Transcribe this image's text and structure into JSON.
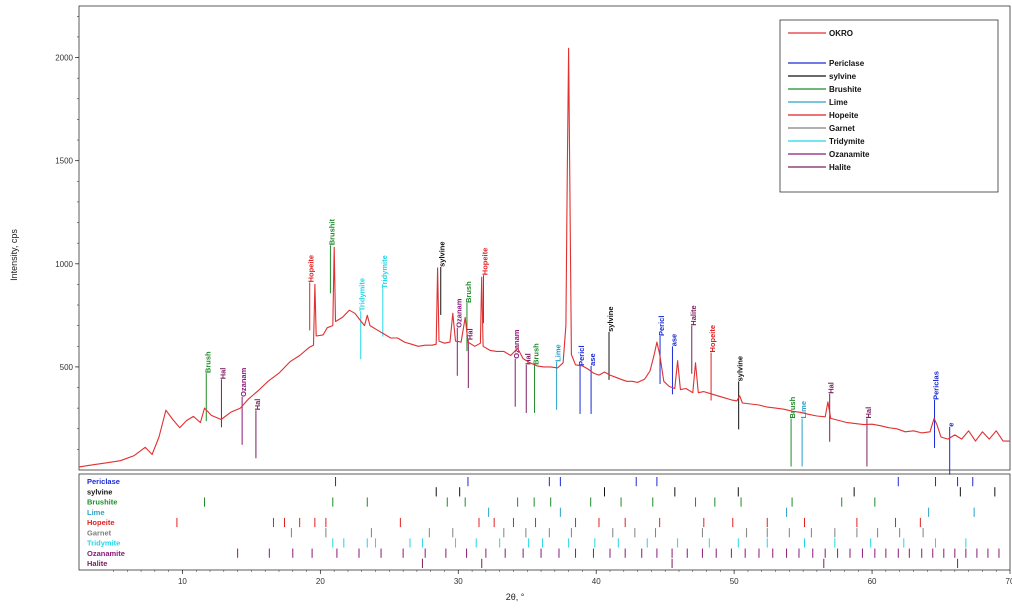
{
  "chart_data": {
    "type": "line",
    "title": "",
    "xlabel": "2θ, °",
    "ylabel": "Intensity, cps",
    "xlim": [
      2.5,
      70
    ],
    "ylim": [
      0,
      2250
    ],
    "x_ticks": [
      10,
      20,
      30,
      40,
      50,
      60,
      70
    ],
    "y_ticks": [
      500,
      1000,
      1500,
      2000
    ],
    "grid": false,
    "legend_position": "top-right",
    "series": [
      {
        "name": "OKRO",
        "color": "#e03030",
        "points": [
          [
            2.5,
            15
          ],
          [
            3.5,
            25
          ],
          [
            4.5,
            35
          ],
          [
            5.5,
            45
          ],
          [
            6.5,
            70
          ],
          [
            7.3,
            110
          ],
          [
            7.8,
            75
          ],
          [
            8.3,
            160
          ],
          [
            8.8,
            290
          ],
          [
            9.3,
            245
          ],
          [
            9.8,
            205
          ],
          [
            10.3,
            240
          ],
          [
            10.8,
            260
          ],
          [
            11.3,
            230
          ],
          [
            11.6,
            300
          ],
          [
            12.1,
            265
          ],
          [
            12.8,
            245
          ],
          [
            13.5,
            280
          ],
          [
            14.2,
            300
          ],
          [
            14.8,
            345
          ],
          [
            15.5,
            385
          ],
          [
            16.2,
            430
          ],
          [
            17,
            470
          ],
          [
            17.8,
            525
          ],
          [
            18.5,
            555
          ],
          [
            19.2,
            595
          ],
          [
            19.5,
            605
          ],
          [
            19.6,
            900
          ],
          [
            19.7,
            650
          ],
          [
            20.2,
            655
          ],
          [
            20.5,
            690
          ],
          [
            20.9,
            700
          ],
          [
            21,
            1080
          ],
          [
            21.1,
            720
          ],
          [
            21.6,
            740
          ],
          [
            22.1,
            775
          ],
          [
            22.5,
            760
          ],
          [
            22.9,
            725
          ],
          [
            23.2,
            700
          ],
          [
            23.4,
            750
          ],
          [
            23.6,
            700
          ],
          [
            24.1,
            680
          ],
          [
            24.6,
            660
          ],
          [
            25.1,
            640
          ],
          [
            25.6,
            640
          ],
          [
            26.1,
            620
          ],
          [
            26.6,
            610
          ],
          [
            27.1,
            600
          ],
          [
            27.6,
            605
          ],
          [
            28.1,
            605
          ],
          [
            28.4,
            610
          ],
          [
            28.5,
            980
          ],
          [
            28.6,
            625
          ],
          [
            29,
            615
          ],
          [
            29.4,
            620
          ],
          [
            29.6,
            760
          ],
          [
            29.8,
            625
          ],
          [
            30.2,
            620
          ],
          [
            30.5,
            740
          ],
          [
            30.7,
            620
          ],
          [
            31.2,
            600
          ],
          [
            31.6,
            615
          ],
          [
            31.7,
            935
          ],
          [
            31.8,
            600
          ],
          [
            32.3,
            580
          ],
          [
            32.8,
            575
          ],
          [
            33.3,
            575
          ],
          [
            33.8,
            555
          ],
          [
            34.3,
            590
          ],
          [
            34.7,
            540
          ],
          [
            35.2,
            520
          ],
          [
            35.7,
            505
          ],
          [
            36.2,
            500
          ],
          [
            36.7,
            500
          ],
          [
            37.2,
            495
          ],
          [
            37.6,
            520
          ],
          [
            37.8,
            700
          ],
          [
            37.9,
            1450
          ],
          [
            38,
            2045
          ],
          [
            38.1,
            1300
          ],
          [
            38.2,
            560
          ],
          [
            38.5,
            510
          ],
          [
            39,
            505
          ],
          [
            39.4,
            490
          ],
          [
            39.8,
            470
          ],
          [
            40.2,
            460
          ],
          [
            40.6,
            475
          ],
          [
            41,
            460
          ],
          [
            41.4,
            450
          ],
          [
            41.8,
            440
          ],
          [
            42.2,
            430
          ],
          [
            42.6,
            430
          ],
          [
            43,
            425
          ],
          [
            43.5,
            440
          ],
          [
            43.9,
            480
          ],
          [
            44.2,
            560
          ],
          [
            44.4,
            620
          ],
          [
            44.6,
            560
          ],
          [
            44.9,
            430
          ],
          [
            45.3,
            405
          ],
          [
            45.7,
            395
          ],
          [
            45.9,
            530
          ],
          [
            46.1,
            390
          ],
          [
            46.5,
            395
          ],
          [
            47,
            375
          ],
          [
            47.2,
            520
          ],
          [
            47.4,
            375
          ],
          [
            47.8,
            380
          ],
          [
            48.3,
            370
          ],
          [
            48.8,
            360
          ],
          [
            49.3,
            350
          ],
          [
            49.8,
            340
          ],
          [
            50.2,
            335
          ],
          [
            50.4,
            360
          ],
          [
            50.6,
            325
          ],
          [
            51.2,
            320
          ],
          [
            51.8,
            315
          ],
          [
            52.4,
            305
          ],
          [
            53,
            300
          ],
          [
            53.6,
            295
          ],
          [
            54.2,
            285
          ],
          [
            54.8,
            280
          ],
          [
            55.4,
            270
          ],
          [
            56,
            262
          ],
          [
            56.6,
            258
          ],
          [
            56.8,
            330
          ],
          [
            57,
            250
          ],
          [
            57.6,
            240
          ],
          [
            58.2,
            230
          ],
          [
            58.8,
            225
          ],
          [
            59.4,
            220
          ],
          [
            60,
            222
          ],
          [
            60.6,
            215
          ],
          [
            61.2,
            205
          ],
          [
            61.8,
            200
          ],
          [
            62.4,
            185
          ],
          [
            63,
            190
          ],
          [
            63.6,
            180
          ],
          [
            64.2,
            185
          ],
          [
            64.5,
            250
          ],
          [
            64.7,
            220
          ],
          [
            65,
            160
          ],
          [
            65.5,
            150
          ],
          [
            66,
            170
          ],
          [
            66.5,
            150
          ],
          [
            67,
            190
          ],
          [
            67.5,
            140
          ],
          [
            68,
            185
          ],
          [
            68.5,
            150
          ],
          [
            69,
            190
          ],
          [
            69.5,
            140
          ],
          [
            70,
            140
          ]
        ]
      }
    ],
    "phases": [
      {
        "name": "Periclase",
        "color": "#1a2ad8"
      },
      {
        "name": "sylvine",
        "color": "#111111"
      },
      {
        "name": "Brushite",
        "color": "#1e8c2a"
      },
      {
        "name": "Lime",
        "color": "#2aa0c8"
      },
      {
        "name": "Hopeite",
        "color": "#e02020"
      },
      {
        "name": "Garnet",
        "color": "#808080"
      },
      {
        "name": "Tridymite",
        "color": "#22d6e6"
      },
      {
        "name": "Ozanamite",
        "color": "#8a1a7a"
      },
      {
        "name": "Halite",
        "color": "#7a2060"
      }
    ],
    "annotations": [
      {
        "text": "Brush",
        "x": 11.8,
        "y": 460,
        "color": "#1e8c2a"
      },
      {
        "text": "Hal",
        "x": 12.9,
        "y": 430,
        "color": "#7a2060"
      },
      {
        "text": "Ozanam",
        "x": 14.4,
        "y": 345,
        "color": "#8a1a7a"
      },
      {
        "text": "Hal",
        "x": 15.4,
        "y": 280,
        "color": "#7a2060"
      },
      {
        "text": "Hopeite",
        "x": 19.3,
        "y": 900,
        "color": "#e02020"
      },
      {
        "text": "Brushit",
        "x": 20.8,
        "y": 1080,
        "color": "#1e8c2a"
      },
      {
        "text": "Tridymite",
        "x": 23.0,
        "y": 760,
        "color": "#22d6e6"
      },
      {
        "text": "Tridymite",
        "x": 24.6,
        "y": 870,
        "color": "#22d6e6"
      },
      {
        "text": "sylvine",
        "x": 28.8,
        "y": 975,
        "color": "#111111"
      },
      {
        "text": "Ozanam",
        "x": 30.0,
        "y": 680,
        "color": "#8a1a7a"
      },
      {
        "text": "Hal",
        "x": 30.8,
        "y": 620,
        "color": "#7a2060"
      },
      {
        "text": "Brush",
        "x": 30.7,
        "y": 800,
        "color": "#1e8c2a"
      },
      {
        "text": "Hopeite",
        "x": 31.9,
        "y": 935,
        "color": "#e02020"
      },
      {
        "text": "Ozanam",
        "x": 34.2,
        "y": 530,
        "color": "#8a1a7a"
      },
      {
        "text": "Hal",
        "x": 35.0,
        "y": 500,
        "color": "#7a2060"
      },
      {
        "text": "Brush",
        "x": 35.6,
        "y": 500,
        "color": "#1e8c2a"
      },
      {
        "text": "Lime",
        "x": 37.2,
        "y": 515,
        "color": "#2aa0c8"
      },
      {
        "text": "Pericl",
        "x": 38.9,
        "y": 495,
        "color": "#1a2ad8"
      },
      {
        "text": "ase",
        "x": 39.7,
        "y": 495,
        "color": "#1a2ad8"
      },
      {
        "text": "sylvine",
        "x": 41.0,
        "y": 660,
        "color": "#111111"
      },
      {
        "text": "Pericl",
        "x": 44.7,
        "y": 640,
        "color": "#1a2ad8"
      },
      {
        "text": "ase",
        "x": 45.6,
        "y": 590,
        "color": "#1a2ad8"
      },
      {
        "text": "Halite",
        "x": 47.0,
        "y": 690,
        "color": "#7a2060"
      },
      {
        "text": "Hopeite",
        "x": 48.4,
        "y": 560,
        "color": "#e02020"
      },
      {
        "text": "sylvine",
        "x": 50.4,
        "y": 420,
        "color": "#111111"
      },
      {
        "text": "Brush",
        "x": 54.2,
        "y": 240,
        "color": "#1e8c2a"
      },
      {
        "text": "Lime",
        "x": 55.0,
        "y": 240,
        "color": "#2aa0c8"
      },
      {
        "text": "Hal",
        "x": 57.0,
        "y": 360,
        "color": "#7a2060"
      },
      {
        "text": "Hal",
        "x": 59.7,
        "y": 240,
        "color": "#7a2060"
      },
      {
        "text": "Periclas",
        "x": 64.6,
        "y": 330,
        "color": "#1a2ad8"
      },
      {
        "text": "e",
        "x": 65.7,
        "y": 200,
        "color": "#1a2ad8"
      }
    ],
    "reference_positions": [
      [
        21.1,
        30.7,
        36.6,
        37.4,
        42.9,
        44.4,
        61.9,
        64.6,
        66.2,
        67.3
      ],
      [
        28.4,
        40.6,
        50.3,
        58.7,
        66.4,
        68.9,
        30.1,
        45.7
      ],
      [
        11.6,
        20.9,
        23.4,
        29.2,
        30.5,
        34.3,
        35.5,
        36.7,
        39.6,
        41.8,
        44.1,
        47.2,
        48.6,
        50.5,
        54.2,
        57.8,
        60.2
      ],
      [
        32.2,
        37.4,
        53.8,
        64.1,
        67.4
      ],
      [
        9.6,
        16.6,
        17.4,
        18.5,
        19.6,
        20.4,
        25.8,
        31.5,
        32.6,
        34.0,
        35.6,
        38.5,
        40.2,
        42.1,
        44.6,
        47.8,
        49.9,
        52.4,
        55.1,
        58.9,
        61.7,
        63.5
      ],
      [
        17.9,
        20.4,
        23.7,
        27.9,
        29.6,
        33.3,
        34.9,
        36.6,
        38.2,
        41.2,
        42.8,
        44.3,
        47.7,
        50.9,
        52.4,
        54.0,
        55.6,
        57.3,
        58.9,
        60.4,
        62.0,
        63.7
      ],
      [
        20.9,
        21.7,
        23.4,
        24.0,
        26.5,
        27.4,
        29.8,
        31.3,
        33.0,
        35.1,
        36.1,
        38.0,
        39.9,
        41.6,
        43.7,
        45.9,
        48.2,
        50.3,
        52.4,
        55.1,
        57.3,
        59.9,
        62.3,
        64.6,
        66.8
      ],
      [
        14.0,
        16.3,
        18.0,
        19.4,
        21.2,
        22.8,
        24.4,
        26.0,
        27.6,
        29.1,
        30.6,
        32.0,
        33.4,
        34.7,
        36.0,
        37.3,
        38.5,
        39.8,
        41.0,
        42.1,
        43.3,
        44.4,
        45.5,
        46.6,
        47.7,
        48.7,
        49.8,
        50.8,
        51.8,
        52.8,
        53.8,
        54.7,
        55.7,
        56.6,
        57.5,
        58.4,
        59.3,
        60.2,
        61.0,
        61.9,
        62.7,
        63.6,
        64.4,
        65.2,
        66.0,
        66.8,
        67.6,
        68.4,
        69.2
      ],
      [
        27.4,
        31.7,
        45.5,
        56.5,
        66.2
      ]
    ]
  }
}
